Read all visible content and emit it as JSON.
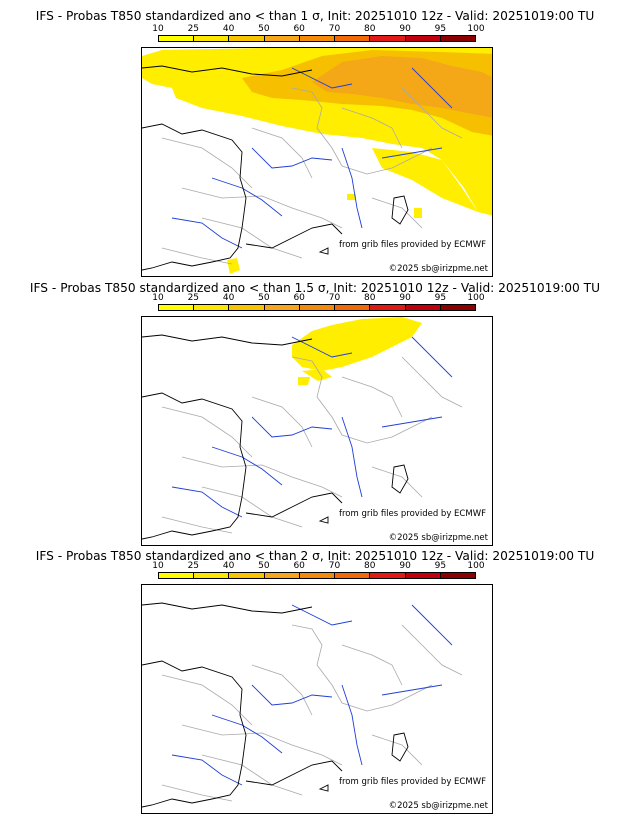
{
  "colors": {
    "c10": "#ffff00",
    "c25": "#fde600",
    "c40": "#f8c400",
    "c50": "#f6a61c",
    "c60": "#f48a0c",
    "c70": "#f06a0a",
    "c80": "#e11a16",
    "c90": "#c0000c",
    "c95": "#8b0000",
    "c100": "#5a0000",
    "prob_low": "#ffee00",
    "prob_mid": "#f6c000",
    "prob_high": "#f4a818",
    "coast": "#000000",
    "river": "#1f3fd6",
    "border": "#a9a9a9"
  },
  "legend": {
    "ticks": [
      "10",
      "25",
      "40",
      "50",
      "60",
      "70",
      "80",
      "90",
      "95",
      "100"
    ]
  },
  "panels": [
    {
      "title": "IFS - Probas T850  standardized ano < than 1 σ, Init: 20251010 12z - Valid: 20251019:00 TU",
      "credit_source": "from grib files provided by ECMWF",
      "credit_copy": "©2025 sb@irizpme.net"
    },
    {
      "title": "IFS - Probas T850  standardized ano < than 1.5 σ, Init: 20251010 12z - Valid: 20251019:00 TU",
      "credit_source": "from grib files provided by ECMWF",
      "credit_copy": "©2025 sb@irizpme.net"
    },
    {
      "title": "IFS - Probas T850  standardized ano < than 2 σ, Init: 20251010 12z - Valid: 20251019:00 TU",
      "credit_source": "from grib files provided by ECMWF",
      "credit_copy": "©2025 sb@irizpme.net"
    }
  ]
}
